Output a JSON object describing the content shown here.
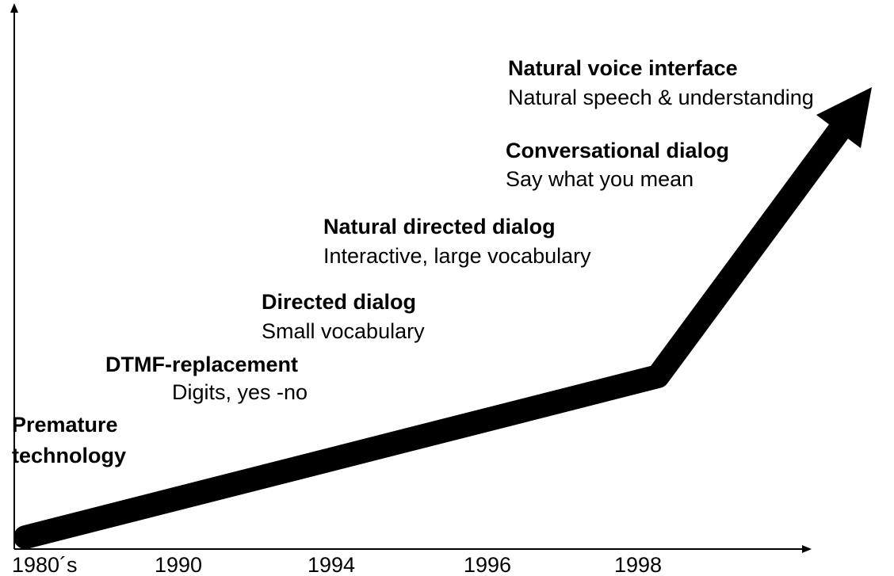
{
  "stages": [
    {
      "title_lines": [
        "Premature",
        "technology"
      ]
    },
    {
      "title": "DTMF-replacement",
      "subtitle": "Digits, yes -no"
    },
    {
      "title": "Directed dialog",
      "subtitle": "Small vocabulary"
    },
    {
      "title": "Natural directed dialog",
      "subtitle": "Interactive, large vocabulary"
    },
    {
      "title": "Conversational dialog",
      "subtitle": "Say what you mean"
    },
    {
      "title": "Natural voice interface",
      "subtitle": "Natural speech & understanding"
    }
  ],
  "x_labels": [
    "1980´s",
    "1990",
    "1994",
    "1996",
    "1998"
  ]
}
